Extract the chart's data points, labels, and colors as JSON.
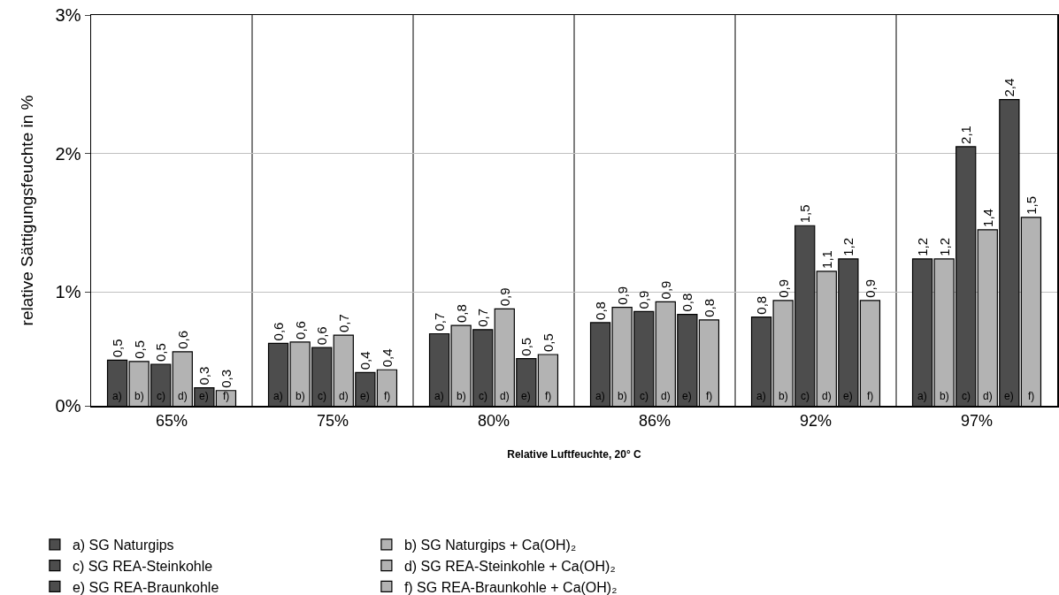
{
  "chart_data": {
    "type": "bar",
    "xlabel": "Relative Luftfeuchte, 20° C",
    "ylabel": "relative Sättigungsfeuchte in %",
    "categories": [
      "65%",
      "75%",
      "80%",
      "86%",
      "92%",
      "97%"
    ],
    "series": [
      {
        "name": "a) SG Naturgips",
        "color": "#4d4d4d",
        "values": [
          0.51,
          0.63,
          0.7,
          0.78,
          0.82,
          1.24
        ],
        "value_labels": [
          "0,5",
          "0,6",
          "0,7",
          "0,8",
          "0,8",
          "1,2"
        ]
      },
      {
        "name": "b) SG Naturgips + Ca(OH)₂",
        "color": "#b3b3b3",
        "values": [
          0.5,
          0.64,
          0.76,
          0.89,
          0.94,
          1.24
        ],
        "value_labels": [
          "0,5",
          "0,6",
          "0,8",
          "0,9",
          "0,9",
          "1,2"
        ]
      },
      {
        "name": "c) SG REA-Steinkohle",
        "color": "#4d4d4d",
        "values": [
          0.48,
          0.6,
          0.73,
          0.86,
          1.48,
          2.05
        ],
        "value_labels": [
          "0,5",
          "0,6",
          "0,7",
          "0,9",
          "1,5",
          "2,1"
        ]
      },
      {
        "name": "d) SG REA-Steinkohle + Ca(OH)₂",
        "color": "#b3b3b3",
        "values": [
          0.57,
          0.69,
          0.88,
          0.93,
          1.15,
          1.45
        ],
        "value_labels": [
          "0,6",
          "0,7",
          "0,9",
          "0,9",
          "1,1",
          "1,4"
        ]
      },
      {
        "name": "e) SG REA-Braunkohle",
        "color": "#4d4d4d",
        "values": [
          0.31,
          0.42,
          0.52,
          0.84,
          1.24,
          2.39
        ],
        "value_labels": [
          "0,3",
          "0,4",
          "0,5",
          "0,8",
          "1,2",
          "2,4"
        ]
      },
      {
        "name": "f) SG REA-Braunkohle + Ca(OH)₂",
        "color": "#b3b3b3",
        "values": [
          0.29,
          0.44,
          0.55,
          0.8,
          0.94,
          1.54
        ],
        "value_labels": [
          "0,3",
          "0,4",
          "0,5",
          "0,8",
          "0,9",
          "1,5"
        ]
      }
    ],
    "ylim": [
      0.18,
      3
    ],
    "yticks": [
      {
        "value": 0.18,
        "label": "0%"
      },
      {
        "value": 1,
        "label": "1%"
      },
      {
        "value": 2,
        "label": "2%"
      },
      {
        "value": 3,
        "label": "3%"
      }
    ],
    "annotations": [
      "a)",
      "b)",
      "c)",
      "d)",
      "e)",
      "f)"
    ],
    "grid": true,
    "legend": "bottom"
  }
}
